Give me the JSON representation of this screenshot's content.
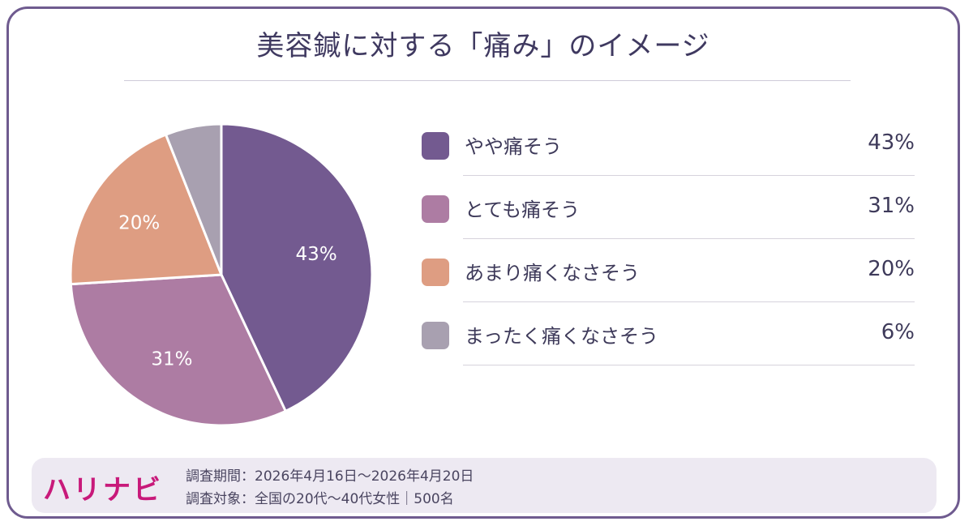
{
  "title": "美容鍼に対する「痛み」のイメージ",
  "chart_data": {
    "type": "pie",
    "title": "美容鍼に対する「痛み」のイメージ",
    "slices": [
      {
        "label": "やや痛そう",
        "value": 43,
        "display": "43%",
        "color": "#735a90"
      },
      {
        "label": "とても痛そう",
        "value": 31,
        "display": "31%",
        "color": "#ad7ca3"
      },
      {
        "label": "あまり痛くなさそう",
        "value": 20,
        "display": "20%",
        "color": "#de9d82"
      },
      {
        "label": "まったく痛くなさそう",
        "value": 6,
        "display": "6%",
        "color": "#a8a0b0"
      }
    ],
    "start": "12 o'clock",
    "direction": "clockwise",
    "legend_position": "right"
  },
  "footer": {
    "logo": "ハリナビ",
    "period": "調査期間：2026年4月16日〜2026年4月20日",
    "target": "調査対象：全国の20代〜40代女性｜500名"
  },
  "colors": {
    "border": "#6f5b8f",
    "footer_bg": "#ede9f2",
    "logo": "#c8197a"
  }
}
